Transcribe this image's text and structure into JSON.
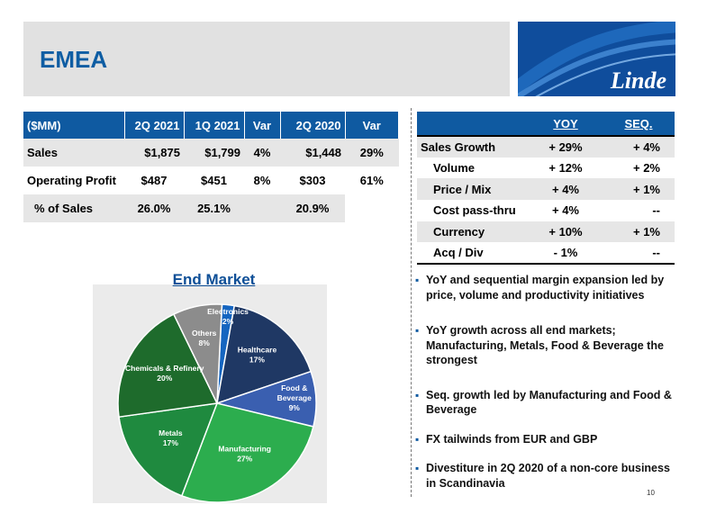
{
  "header": {
    "title": "EMEA",
    "logo_text": "Linde"
  },
  "financials": {
    "columns": [
      "($MM)",
      "2Q 2021",
      "1Q 2021",
      "Var",
      "2Q 2020",
      "Var"
    ],
    "rows": [
      [
        "Sales",
        "$1,875",
        "$1,799",
        "4%",
        "$1,448",
        "29%"
      ],
      [
        "Operating Profit",
        "$487",
        "$451",
        "8%",
        "$303",
        "61%"
      ],
      [
        "% of Sales",
        "26.0%",
        "25.1%",
        "",
        "20.9%",
        ""
      ]
    ]
  },
  "growth": {
    "columns": [
      "",
      "YOY",
      "SEQ."
    ],
    "rows": [
      [
        "Sales Growth",
        "+ 29%",
        "+ 4%"
      ],
      [
        "Volume",
        "+ 12%",
        "+ 2%"
      ],
      [
        "Price / Mix",
        "+ 4%",
        "+ 1%"
      ],
      [
        "Cost pass-thru",
        "+ 4%",
        "--"
      ],
      [
        "Currency",
        "+ 10%",
        "+ 1%"
      ],
      [
        "Acq / Div",
        "- 1%",
        "--"
      ]
    ]
  },
  "chart_data": {
    "type": "pie",
    "title": "End Market",
    "slices": [
      {
        "label": "Electronics",
        "pct_label": "2%",
        "value": 2,
        "color": "#1565c0"
      },
      {
        "label": "Healthcare",
        "pct_label": "17%",
        "value": 17,
        "color": "#1f3864"
      },
      {
        "label": "Food &\nBeverage",
        "pct_label": "9%",
        "value": 9,
        "color": "#3a5fb0"
      },
      {
        "label": "Manufacturing",
        "pct_label": "27%",
        "value": 27,
        "color": "#2cad4e"
      },
      {
        "label": "Metals",
        "pct_label": "17%",
        "value": 17,
        "color": "#1f8a3f"
      },
      {
        "label": "Chemicals & Refinery",
        "pct_label": "20%",
        "value": 20,
        "color": "#1e6b2c"
      },
      {
        "label": "Others",
        "pct_label": "8%",
        "value": 8,
        "color": "#8c8c8c"
      }
    ]
  },
  "bullets": [
    "YoY and sequential margin expansion led by price, volume and productivity initiatives",
    "YoY growth across all end markets; Manufacturing, Metals, Food & Beverage the strongest",
    "Seq. growth led by Manufacturing and Food & Beverage",
    "FX tailwinds from EUR and GBP",
    "Divestiture in 2Q 2020 of a non-core business in Scandinavia"
  ],
  "page_number": "10"
}
